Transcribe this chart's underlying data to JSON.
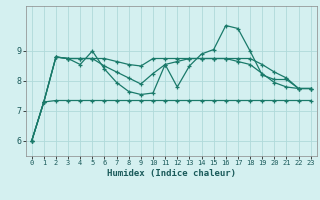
{
  "title": "",
  "xlabel": "Humidex (Indice chaleur)",
  "bg_color": "#d4f0f0",
  "grid_color": "#b0dada",
  "line_color": "#1a7a6a",
  "ylim": [
    5.5,
    10.5
  ],
  "xlim": [
    -0.5,
    23.5
  ],
  "yticks": [
    6,
    7,
    8,
    9
  ],
  "xticks": [
    0,
    1,
    2,
    3,
    4,
    5,
    6,
    7,
    8,
    9,
    10,
    11,
    12,
    13,
    14,
    15,
    16,
    17,
    18,
    19,
    20,
    21,
    22,
    23
  ],
  "series": [
    [
      6.0,
      7.3,
      7.35,
      7.35,
      7.35,
      7.35,
      7.35,
      7.35,
      7.35,
      7.35,
      7.35,
      7.35,
      7.35,
      7.35,
      7.35,
      7.35,
      7.35,
      7.35,
      7.35,
      7.35,
      7.35,
      7.35,
      7.35,
      7.35
    ],
    [
      6.0,
      7.3,
      8.8,
      8.75,
      8.55,
      9.0,
      8.4,
      7.95,
      7.65,
      7.55,
      7.6,
      8.55,
      7.8,
      8.5,
      8.9,
      9.05,
      9.85,
      9.75,
      9.0,
      8.2,
      8.05,
      8.05,
      7.75,
      7.75
    ],
    [
      6.0,
      7.3,
      8.8,
      8.75,
      8.75,
      8.75,
      8.75,
      8.65,
      8.55,
      8.5,
      8.75,
      8.75,
      8.75,
      8.75,
      8.75,
      8.75,
      8.75,
      8.75,
      8.75,
      8.55,
      8.3,
      8.1,
      7.75,
      7.75
    ],
    [
      6.0,
      7.3,
      8.8,
      8.75,
      8.75,
      8.75,
      8.5,
      8.3,
      8.1,
      7.9,
      8.25,
      8.55,
      8.65,
      8.75,
      8.75,
      8.75,
      8.75,
      8.65,
      8.55,
      8.25,
      7.95,
      7.8,
      7.75,
      7.75
    ]
  ]
}
